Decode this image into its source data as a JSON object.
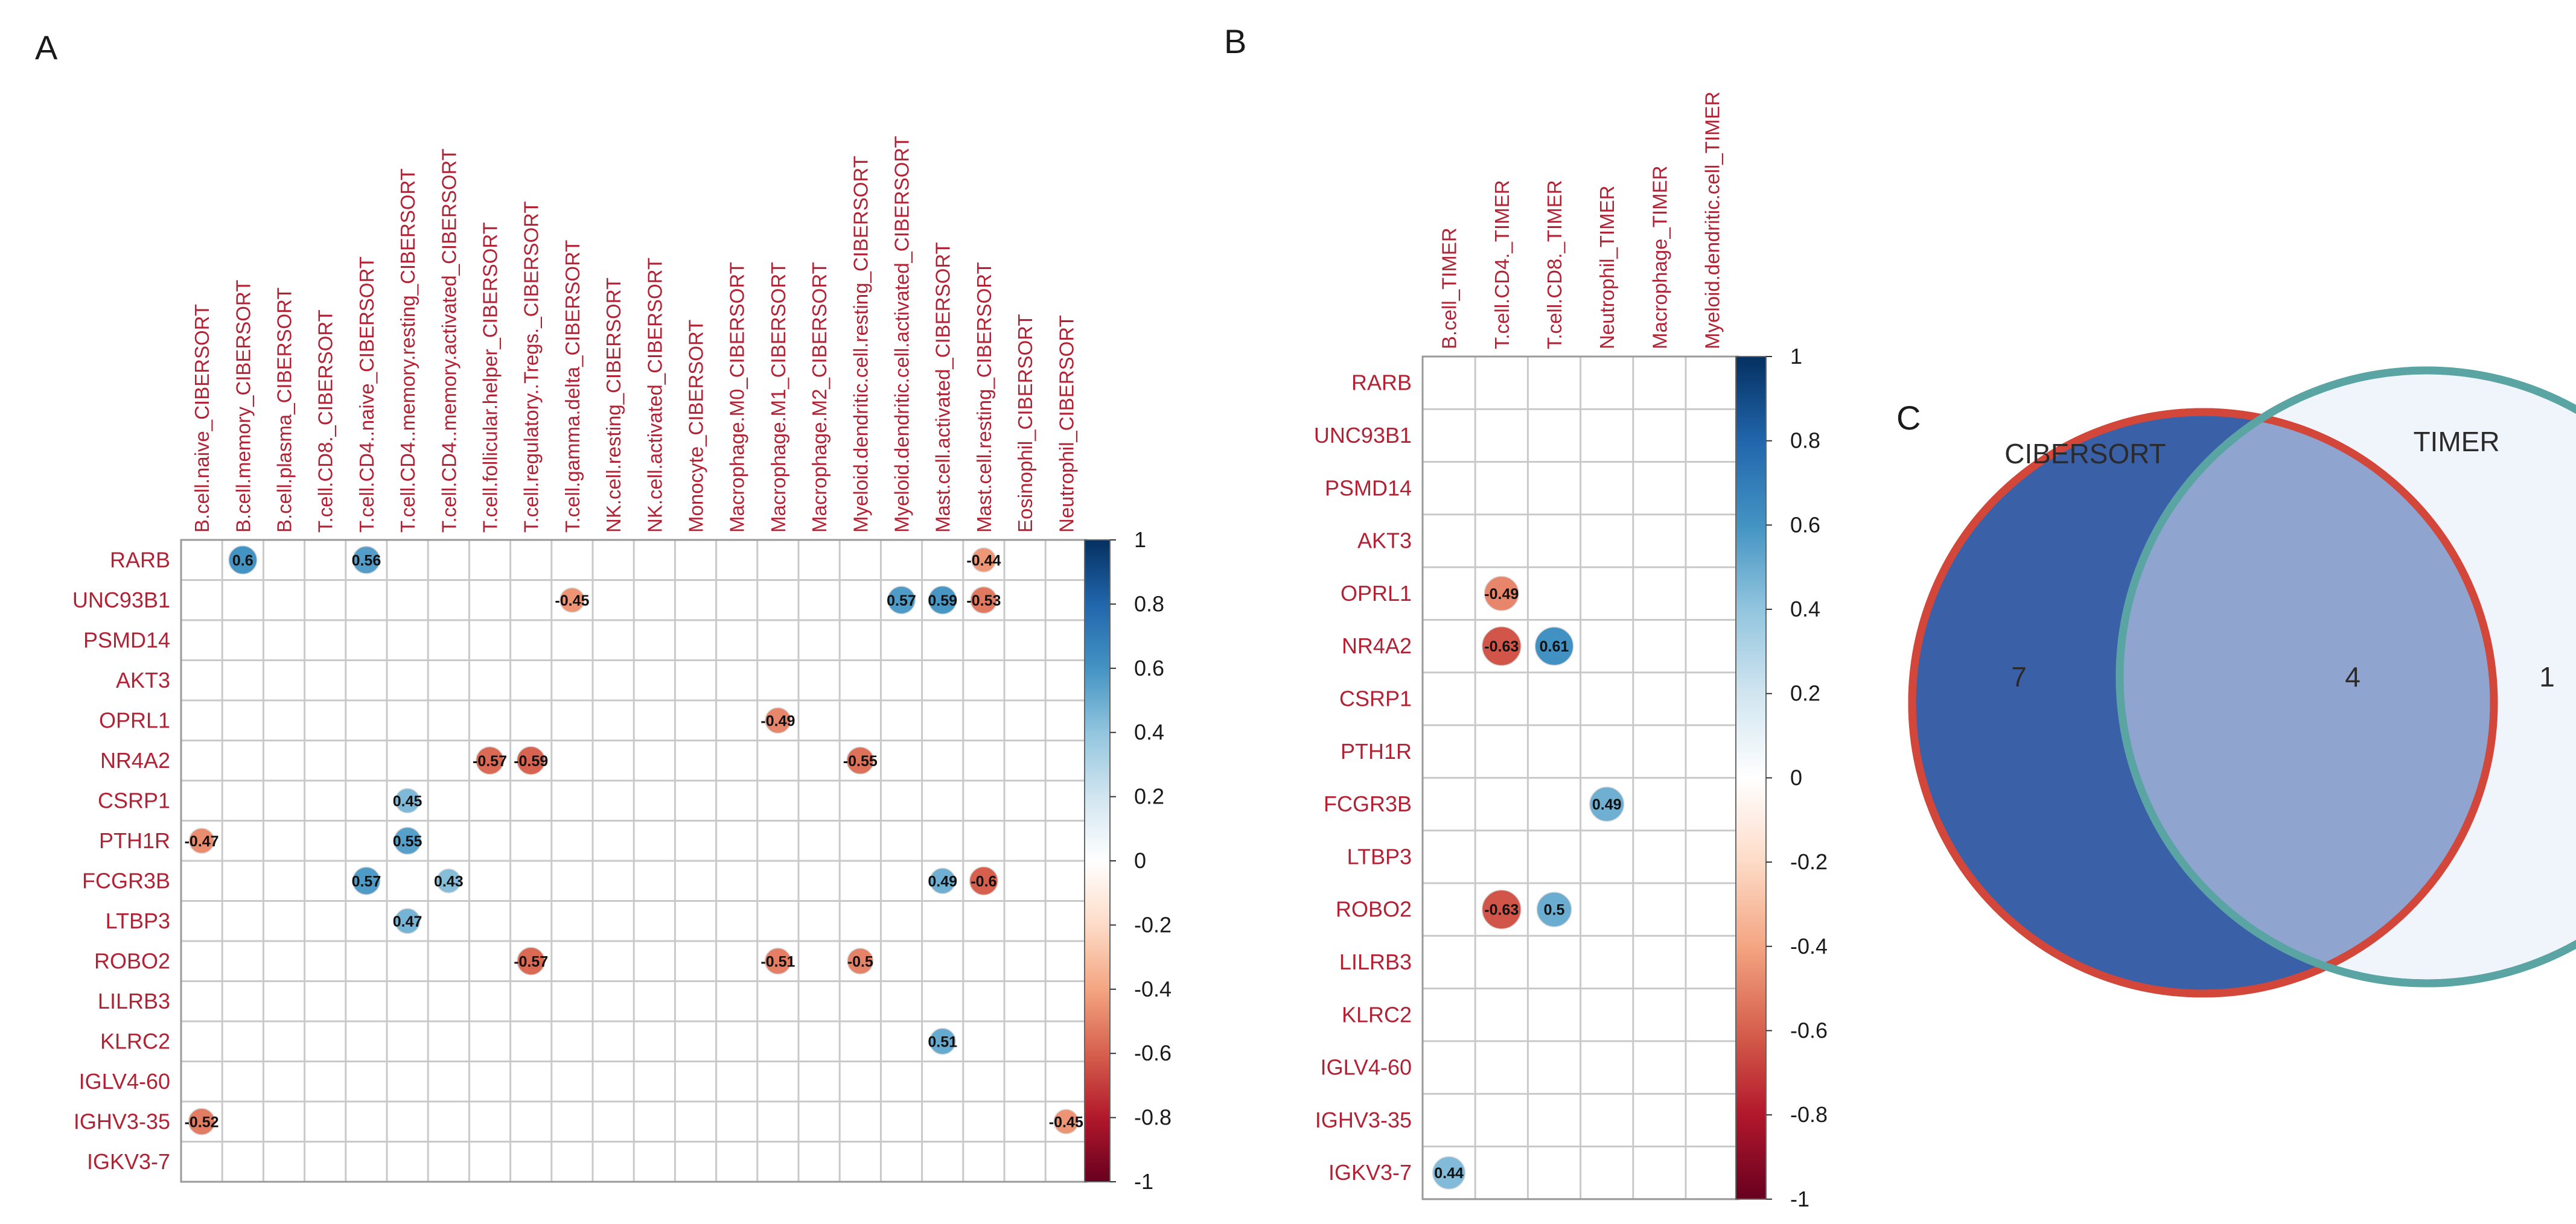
{
  "chart_data": [
    {
      "panel": "A",
      "type": "heatmap",
      "style": "correlation circles, blank where not significant",
      "colorscale": {
        "min": -1,
        "max": 1,
        "low": "#67001f",
        "mid": "#ffffff",
        "high": "#053061"
      },
      "colorbar_ticks": [
        "1",
        "0.8",
        "0.6",
        "0.4",
        "0.2",
        "0",
        "-0.2",
        "-0.4",
        "-0.6",
        "-0.8",
        "-1"
      ],
      "rows": [
        "RARB",
        "UNC93B1",
        "PSMD14",
        "AKT3",
        "OPRL1",
        "NR4A2",
        "CSRP1",
        "PTH1R",
        "FCGR3B",
        "LTBP3",
        "ROBO2",
        "LILRB3",
        "KLRC2",
        "IGLV4-60",
        "IGHV3-35",
        "IGKV3-7"
      ],
      "columns": [
        "B.cell.naive_CIBERSORT",
        "B.cell.memory_CIBERSORT",
        "B.cell.plasma_CIBERSORT",
        "T.cell.CD8._CIBERSORT",
        "T.cell.CD4..naive_CIBERSORT",
        "T.cell.CD4..memory.resting_CIBERSORT",
        "T.cell.CD4..memory.activated_CIBERSORT",
        "T.cell.follicular.helper_CIBERSORT",
        "T.cell.regulatory..Tregs._CIBERSORT",
        "T.cell.gamma.delta_CIBERSORT",
        "NK.cell.resting_CIBERSORT",
        "NK.cell.activated_CIBERSORT",
        "Monocyte_CIBERSORT",
        "Macrophage.M0_CIBERSORT",
        "Macrophage.M1_CIBERSORT",
        "Macrophage.M2_CIBERSORT",
        "Myeloid.dendritic.cell.resting_CIBERSORT",
        "Myeloid.dendritic.cell.activated_CIBERSORT",
        "Mast.cell.activated_CIBERSORT",
        "Mast.cell.resting_CIBERSORT",
        "Eosinophil_CIBERSORT",
        "Neutrophil_CIBERSORT"
      ],
      "cells": [
        {
          "row": 0,
          "col": 1,
          "value": 0.6,
          "label": "0.6"
        },
        {
          "row": 0,
          "col": 4,
          "value": 0.56,
          "label": "0.56"
        },
        {
          "row": 0,
          "col": 19,
          "value": -0.44,
          "label": "-0.44"
        },
        {
          "row": 1,
          "col": 9,
          "value": -0.45,
          "label": "-0.45"
        },
        {
          "row": 1,
          "col": 17,
          "value": 0.57,
          "label": "0.57"
        },
        {
          "row": 1,
          "col": 18,
          "value": 0.59,
          "label": "0.59"
        },
        {
          "row": 1,
          "col": 19,
          "value": -0.53,
          "label": "-0.53"
        },
        {
          "row": 4,
          "col": 14,
          "value": -0.49,
          "label": "-0.49"
        },
        {
          "row": 5,
          "col": 7,
          "value": -0.57,
          "label": "-0.57"
        },
        {
          "row": 5,
          "col": 8,
          "value": -0.59,
          "label": "-0.59"
        },
        {
          "row": 5,
          "col": 16,
          "value": -0.55,
          "label": "-0.55"
        },
        {
          "row": 6,
          "col": 5,
          "value": 0.45,
          "label": "0.45"
        },
        {
          "row": 7,
          "col": 0,
          "value": -0.47,
          "label": "-0.47"
        },
        {
          "row": 7,
          "col": 5,
          "value": 0.55,
          "label": "0.55"
        },
        {
          "row": 8,
          "col": 4,
          "value": 0.57,
          "label": "0.57"
        },
        {
          "row": 8,
          "col": 6,
          "value": 0.43,
          "label": "0.43"
        },
        {
          "row": 8,
          "col": 18,
          "value": 0.49,
          "label": "0.49"
        },
        {
          "row": 8,
          "col": 19,
          "value": -0.6,
          "label": "-0.6"
        },
        {
          "row": 9,
          "col": 5,
          "value": 0.47,
          "label": "0.47"
        },
        {
          "row": 10,
          "col": 8,
          "value": -0.57,
          "label": "-0.57"
        },
        {
          "row": 10,
          "col": 14,
          "value": -0.51,
          "label": "-0.51"
        },
        {
          "row": 10,
          "col": 16,
          "value": -0.5,
          "label": "-0.5"
        },
        {
          "row": 12,
          "col": 18,
          "value": 0.51,
          "label": "0.51"
        },
        {
          "row": 14,
          "col": 0,
          "value": -0.52,
          "label": "-0.52"
        },
        {
          "row": 14,
          "col": 21,
          "value": -0.45,
          "label": "-0.45"
        }
      ]
    },
    {
      "panel": "B",
      "type": "heatmap",
      "style": "correlation circles, blank where not significant",
      "colorscale": {
        "min": -1,
        "max": 1,
        "low": "#67001f",
        "mid": "#ffffff",
        "high": "#053061"
      },
      "colorbar_ticks": [
        "1",
        "0.8",
        "0.6",
        "0.4",
        "0.2",
        "0",
        "-0.2",
        "-0.4",
        "-0.6",
        "-0.8",
        "-1"
      ],
      "rows": [
        "RARB",
        "UNC93B1",
        "PSMD14",
        "AKT3",
        "OPRL1",
        "NR4A2",
        "CSRP1",
        "PTH1R",
        "FCGR3B",
        "LTBP3",
        "ROBO2",
        "LILRB3",
        "KLRC2",
        "IGLV4-60",
        "IGHV3-35",
        "IGKV3-7"
      ],
      "columns": [
        "B.cell_TIMER",
        "T.cell.CD4._TIMER",
        "T.cell.CD8._TIMER",
        "Neutrophil_TIMER",
        "Macrophage_TIMER",
        "Myeloid.dendritic.cell_TIMER"
      ],
      "cells": [
        {
          "row": 4,
          "col": 1,
          "value": -0.49,
          "label": "-0.49"
        },
        {
          "row": 5,
          "col": 1,
          "value": -0.63,
          "label": "-0.63"
        },
        {
          "row": 5,
          "col": 2,
          "value": 0.61,
          "label": "0.61"
        },
        {
          "row": 8,
          "col": 3,
          "value": 0.49,
          "label": "0.49"
        },
        {
          "row": 10,
          "col": 1,
          "value": -0.63,
          "label": "-0.63"
        },
        {
          "row": 10,
          "col": 2,
          "value": 0.5,
          "label": "0.5"
        },
        {
          "row": 15,
          "col": 0,
          "value": 0.44,
          "label": "0.44"
        }
      ]
    },
    {
      "panel": "C",
      "type": "venn",
      "sets": [
        {
          "name": "CIBERSORT",
          "only": 7,
          "fill": "#3a61a8",
          "stroke": "#d2473a"
        },
        {
          "name": "TIMER",
          "only": 1,
          "fill": "#f0f4fb",
          "stroke": "#5aa5a4"
        }
      ],
      "intersection": 4,
      "intersection_fill": "#8fa5cf"
    }
  ],
  "panels": {
    "a": {
      "letter": "A"
    },
    "b": {
      "letter": "B"
    },
    "c": {
      "letter": "C"
    }
  }
}
